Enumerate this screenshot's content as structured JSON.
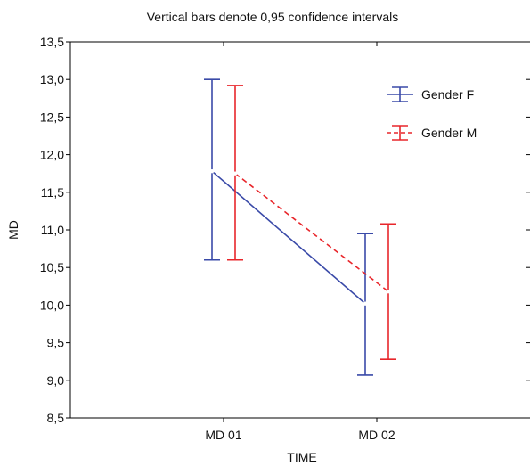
{
  "chart_data": {
    "type": "line",
    "title": "Vertical bars denote 0,95 confidence intervals",
    "xlabel": "TIME",
    "ylabel": "MD",
    "categories": [
      "MD 01",
      "MD 02"
    ],
    "ylim": [
      8.5,
      13.5
    ],
    "yticks": [
      "8,5",
      "9,0",
      "9,5",
      "10,0",
      "10,5",
      "11,0",
      "11,5",
      "12,0",
      "12,5",
      "13,0",
      "13,5"
    ],
    "grid": false,
    "legend_position": "top-right",
    "series": [
      {
        "name": "Gender F",
        "color": "#3a4aa8",
        "line_style": "solid",
        "values": [
          11.78,
          10.02
        ],
        "ci_low": [
          10.6,
          9.07
        ],
        "ci_high": [
          13.0,
          10.95
        ]
      },
      {
        "name": "Gender M",
        "color": "#e8262b",
        "line_style": "dashed",
        "values": [
          11.75,
          10.18
        ],
        "ci_low": [
          10.6,
          9.28
        ],
        "ci_high": [
          12.92,
          11.08
        ]
      }
    ]
  }
}
